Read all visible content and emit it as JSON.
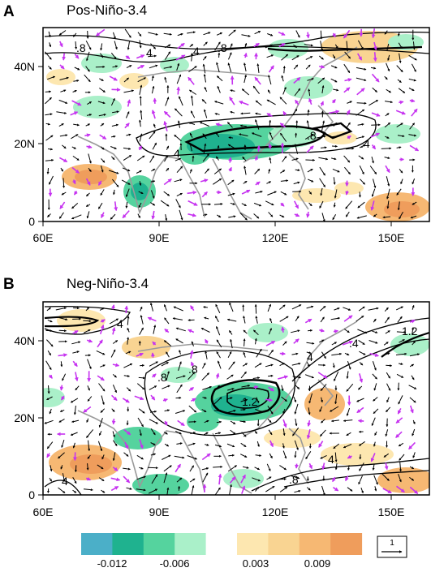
{
  "panels": [
    {
      "letter": "A",
      "title": "Pos-Niño-3.4",
      "x_ticks": [
        "60E",
        "90E",
        "120E",
        "150E"
      ],
      "y_ticks": [
        "0",
        "20N",
        "40N"
      ],
      "contour_labels": [
        ".8",
        "4",
        ".4",
        ".8",
        ".8",
        ".4",
        "4"
      ]
    },
    {
      "letter": "B",
      "title": "Neg-Niño-3.4",
      "x_ticks": [
        "60E",
        "90E",
        "120E",
        "150E"
      ],
      "y_ticks": [
        "0",
        "20N",
        "40N"
      ],
      "contour_labels": [
        "4",
        ".8",
        "1.2",
        ".8",
        "4",
        ".4",
        "1.2",
        "4",
        ".8",
        "4"
      ]
    }
  ],
  "colorbar": {
    "labels": [
      "-0.012",
      "-0.006",
      "0.003",
      "0.009"
    ],
    "colors": [
      "#4bafc8",
      "#1fb28f",
      "#55d39e",
      "#aaf0c9",
      "#ffffff",
      "#fde7b0",
      "#f9d492",
      "#f6b873",
      "#ef9d5c"
    ]
  },
  "reference_vector": {
    "label": "1"
  },
  "colors": {
    "vector_black": "#000000",
    "vector_magenta": "#c633f0",
    "coast": "#9a9a9a"
  }
}
